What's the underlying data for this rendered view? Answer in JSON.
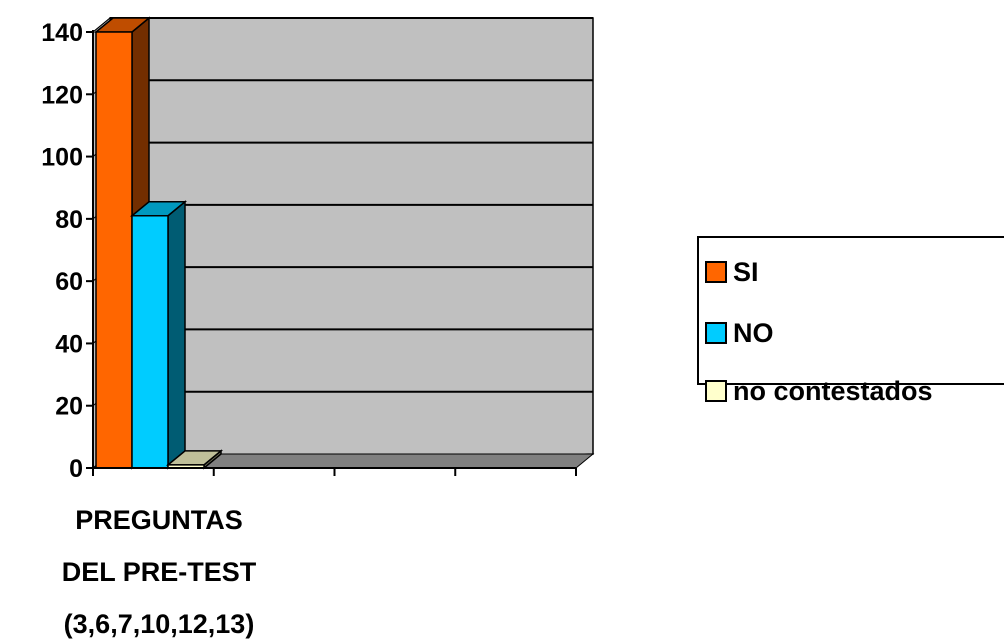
{
  "chart_data": {
    "type": "bar",
    "categories": [
      "PREGUNTAS DEL PRE-TEST (3,6,7,10,12,13)"
    ],
    "category_label_lines": [
      "PREGUNTAS",
      "DEL PRE-TEST",
      "(3,6,7,10,12,13)"
    ],
    "series": [
      {
        "name": "SI",
        "values": [
          140
        ],
        "color": "#ff6600"
      },
      {
        "name": "NO",
        "values": [
          81
        ],
        "color": "#00ccff"
      },
      {
        "name": "no contestados",
        "values": [
          1
        ],
        "color": "#ffffcc"
      }
    ],
    "ylim": [
      0,
      140
    ],
    "yticks": [
      "0",
      "20",
      "40",
      "60",
      "80",
      "100",
      "120",
      "140"
    ],
    "grid": true,
    "three_d": true,
    "legend_position": "right",
    "wall_color": "#c0c0c0",
    "floor_color": "#808080"
  }
}
